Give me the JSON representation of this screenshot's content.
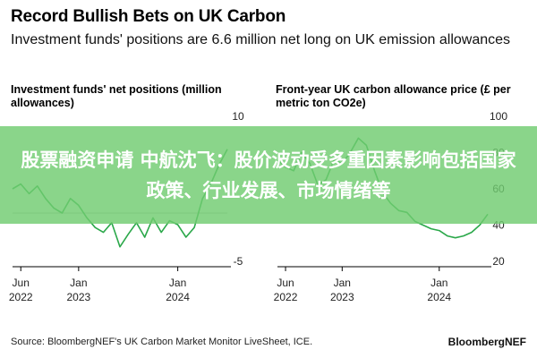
{
  "header": {
    "title": "Record Bullish Bets on UK Carbon",
    "subtitle": "Investment funds' positions are 6.6 million net long on UK emission allowances"
  },
  "banner": {
    "text": "股票融资申请 中航沈飞：股价波动受多重因素影响包括国家政策、行业发展、市场情绪等"
  },
  "footer": {
    "source": "Source: BloombergNEF's UK Carbon Market Monitor LiveSheet, ICE.",
    "brand": "BloombergNEF"
  },
  "colors": {
    "line": "#2ba84a",
    "axis": "#000000",
    "banner": "#70cc70"
  },
  "chart_data": [
    {
      "type": "line",
      "title": "Investment funds' net positions (million allowances)",
      "y_axis_side": "right",
      "ylim": [
        -5,
        10
      ],
      "yticks": [
        10,
        -5
      ],
      "x_range": [
        "2022-05",
        "2024-07"
      ],
      "xticks": [
        {
          "x": "2022-06",
          "line1": "Jun",
          "line2": "2022"
        },
        {
          "x": "2023-01",
          "line1": "Jan",
          "line2": "2023"
        },
        {
          "x": "2024-01",
          "line1": "Jan",
          "line2": "2024"
        }
      ],
      "series": [
        {
          "x": [
            "2022-05",
            "2022-06",
            "2022-07",
            "2022-08",
            "2022-09",
            "2022-10",
            "2022-11",
            "2022-12",
            "2023-01",
            "2023-02",
            "2023-03",
            "2023-04",
            "2023-05",
            "2023-06",
            "2023-07",
            "2023-08",
            "2023-09",
            "2023-10",
            "2023-11",
            "2023-12",
            "2024-01",
            "2024-02",
            "2024-03",
            "2024-04",
            "2024-05",
            "2024-06",
            "2024-07"
          ],
          "values": [
            2.5,
            3.0,
            2.0,
            2.8,
            1.5,
            0.5,
            0.0,
            1.5,
            0.8,
            -0.5,
            -1.5,
            -2.0,
            -1.0,
            -3.5,
            -2.2,
            -1.0,
            -2.5,
            -0.5,
            -2.0,
            -0.8,
            -1.2,
            -2.5,
            -1.5,
            1.5,
            3.0,
            5.0,
            6.6
          ]
        }
      ]
    },
    {
      "type": "line",
      "title": "Front-year UK carbon allowance price (£ per metric ton CO2e)",
      "y_axis_side": "right",
      "ylim": [
        20,
        100
      ],
      "yticks": [
        100,
        80,
        60,
        40,
        20
      ],
      "x_range": [
        "2022-05",
        "2024-07"
      ],
      "xticks": [
        {
          "x": "2022-06",
          "line1": "Jun",
          "line2": "2022"
        },
        {
          "x": "2023-01",
          "line1": "Jan",
          "line2": "2023"
        },
        {
          "x": "2024-01",
          "line1": "Jan",
          "line2": "2024"
        }
      ],
      "series": [
        {
          "x": [
            "2022-05",
            "2022-06",
            "2022-07",
            "2022-08",
            "2022-09",
            "2022-10",
            "2022-11",
            "2022-12",
            "2023-01",
            "2023-02",
            "2023-03",
            "2023-04",
            "2023-05",
            "2023-06",
            "2023-07",
            "2023-08",
            "2023-09",
            "2023-10",
            "2023-11",
            "2023-12",
            "2024-01",
            "2024-02",
            "2024-03",
            "2024-04",
            "2024-05",
            "2024-06",
            "2024-07"
          ],
          "values": [
            76,
            72,
            70,
            80,
            74,
            62,
            65,
            76,
            74,
            80,
            88,
            84,
            70,
            58,
            52,
            48,
            47,
            42,
            40,
            38,
            37,
            34,
            33,
            34,
            36,
            40,
            46
          ]
        }
      ]
    }
  ]
}
